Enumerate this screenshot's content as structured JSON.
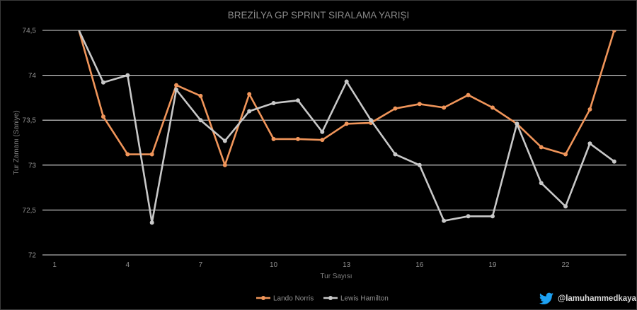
{
  "chart_data": {
    "type": "line",
    "title": "BREZİLYA GP SPRINT SIRALAMA YARIŞI",
    "xlabel": "Tur Sayısı",
    "ylabel": "Tur Zamanı (Saniye)",
    "x": [
      1,
      2,
      3,
      4,
      5,
      6,
      7,
      8,
      9,
      10,
      11,
      12,
      13,
      14,
      15,
      16,
      17,
      18,
      19,
      20,
      21,
      22,
      23,
      24
    ],
    "xticks": [
      "1",
      "4",
      "7",
      "10",
      "13",
      "16",
      "19",
      "22"
    ],
    "yticks": [
      "72",
      "72,5",
      "73",
      "73,5",
      "74",
      "74,5"
    ],
    "ylim": [
      72,
      74.5
    ],
    "grid": "horizontal",
    "legend": "bottom",
    "series": [
      {
        "name": "Lando Norris",
        "color": "#f0955a",
        "values": [
          null,
          74.5,
          73.54,
          73.12,
          73.12,
          73.89,
          73.77,
          73.0,
          73.79,
          73.29,
          73.29,
          73.28,
          73.46,
          73.47,
          73.63,
          73.68,
          73.64,
          73.78,
          73.64,
          73.46,
          73.2,
          73.12,
          73.62,
          74.5
        ]
      },
      {
        "name": "Lewis Hamilton",
        "color": "#c8c8c8",
        "values": [
          null,
          74.5,
          73.92,
          74.0,
          72.36,
          73.84,
          73.5,
          73.27,
          73.6,
          73.69,
          73.72,
          73.37,
          73.93,
          73.5,
          73.12,
          73.0,
          72.38,
          72.43,
          72.43,
          73.46,
          72.8,
          72.54,
          73.24,
          73.04
        ]
      }
    ]
  },
  "branding": {
    "handle": "@lamuhammedkaya",
    "icon": "twitter-bird-icon",
    "icon_color": "#1da1f2"
  }
}
